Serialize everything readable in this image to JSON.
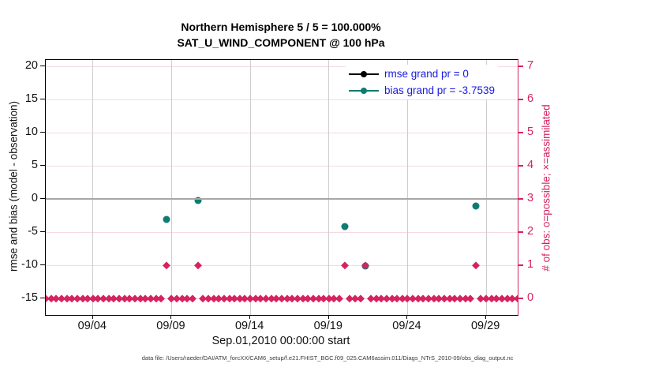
{
  "title_line1": "Northern Hemisphere 5 / 5 = 100.000%",
  "title_line2": "SAT_U_WIND_COMPONENT @ 100 hPa",
  "caption": "data file: /Users/raeder/DAI/ATM_forcXX/CAM6_setup/f.e21.FHIST_BGC.f09_025.CAM6assim.011/Diags_NTrS_2010-09/obs_diag_output.nc",
  "colors": {
    "crimson": "#d5235f",
    "teal": "#0e7c72",
    "legend_blue": "#1a1ae0",
    "grid_pink": "#f5dae3",
    "grid_gray": "#cdcdcd",
    "zero_gray": "#a8a8a8",
    "black": "#000000"
  },
  "chart_data": {
    "type": "scatter",
    "title": "Northern Hemisphere 5 / 5 = 100.000%  /  SAT_U_WIND_COMPONENT @ 100 hPa",
    "xlabel": "Sep.01,2010 00:00:00 start",
    "ylabel_left": "rmse and bias (model - observation)",
    "ylabel_right": "# of obs: o=possible; ×=assimilated",
    "x_domain_days": [
      1,
      31
    ],
    "y_left_domain": [
      -17.5,
      21
    ],
    "y_right_to_left": {
      "scale": 5,
      "offset": -15
    },
    "grid": "on",
    "legend_position": "top-right-inside",
    "x_ticks": [
      {
        "day": 4,
        "label": "09/04"
      },
      {
        "day": 9,
        "label": "09/09"
      },
      {
        "day": 14,
        "label": "09/14"
      },
      {
        "day": 19,
        "label": "09/19"
      },
      {
        "day": 24,
        "label": "09/24"
      },
      {
        "day": 29,
        "label": "09/29"
      }
    ],
    "y_left_ticks": [
      {
        "value": 20,
        "label": "20"
      },
      {
        "value": 15,
        "label": "15"
      },
      {
        "value": 10,
        "label": "10"
      },
      {
        "value": 5,
        "label": "5"
      },
      {
        "value": 0,
        "label": "0"
      },
      {
        "value": -5,
        "label": "-5"
      },
      {
        "value": -10,
        "label": "-10"
      },
      {
        "value": -15,
        "label": "-15"
      }
    ],
    "y_right_ticks": [
      {
        "value": 0,
        "label": "0"
      },
      {
        "value": 1,
        "label": "1"
      },
      {
        "value": 2,
        "label": "2"
      },
      {
        "value": 3,
        "label": "3"
      },
      {
        "value": 4,
        "label": "4"
      },
      {
        "value": 5,
        "label": "5"
      },
      {
        "value": 6,
        "label": "6"
      },
      {
        "value": 7,
        "label": "7"
      }
    ],
    "zero_reference_line": 0,
    "series": [
      {
        "name": "rmse grand pr = 0",
        "marker": "circle",
        "color_key": "black",
        "points": []
      },
      {
        "name": "bias grand pr = -3.7539",
        "marker": "circle",
        "color_key": "teal",
        "points": [
          {
            "day": 8.667,
            "value": -3.1
          },
          {
            "day": 10.667,
            "value": -0.2
          },
          {
            "day": 20.0,
            "value": -4.1
          },
          {
            "day": 21.333,
            "value": -10.1
          },
          {
            "day": 28.333,
            "value": -1.0
          }
        ]
      }
    ],
    "obs_counts": {
      "axis": "right",
      "marker": "diamond",
      "color_key": "crimson",
      "count_one_value": 1,
      "count_one_days": [
        8.667,
        10.667,
        20.0,
        21.333,
        28.333
      ],
      "zero_row": {
        "value": 0,
        "day_start": 1,
        "day_end": 31,
        "step_days": 0.333333
      }
    }
  }
}
